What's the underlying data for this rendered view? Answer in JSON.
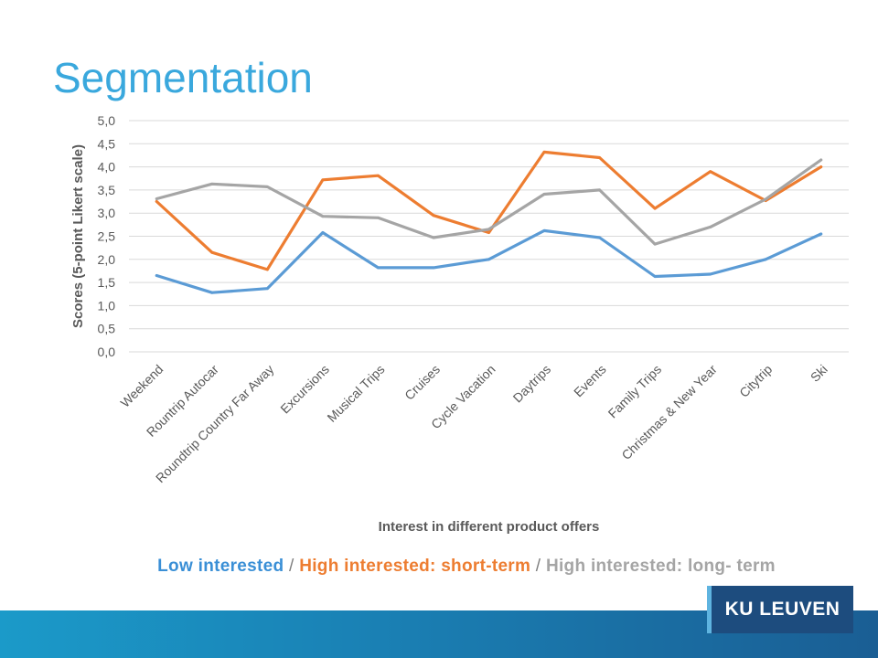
{
  "slide": {
    "title": "Segmentation",
    "logo_text": "KU LEUVEN"
  },
  "legend": {
    "low": "Low interested",
    "sep1": " / ",
    "short": "High interested: short-term",
    "sep2": " / ",
    "long": "High interested: long- term"
  },
  "colors": {
    "title": "#3aa8dd",
    "low": "#5b9bd5",
    "short": "#ed7d31",
    "long": "#a5a5a5",
    "footer": "#1a7fb3",
    "logo_bg": "#1d4c7e"
  },
  "chart_data": {
    "type": "line",
    "title": "",
    "xlabel": "Interest in different product offers",
    "ylabel": "Scores (5-point Likert scale)",
    "ylim": [
      0,
      5
    ],
    "yticks": [
      "0,0",
      "0,5",
      "1,0",
      "1,5",
      "2,0",
      "2,5",
      "3,0",
      "3,5",
      "4,0",
      "4,5",
      "5,0"
    ],
    "grid": true,
    "categories": [
      "Weekend",
      "Rountrip Autocar",
      "Roundtrip Country Far Away",
      "Excursions",
      "Musical Trips",
      "Cruises",
      "Cycle Vacation",
      "Daytrips",
      "Events",
      "Family Trips",
      "Christmas & New Year",
      "Citytrip",
      "Ski"
    ],
    "series": [
      {
        "name": "Low interested",
        "color": "#5b9bd5",
        "values": [
          1.65,
          1.28,
          1.37,
          2.58,
          1.82,
          1.82,
          2.0,
          2.62,
          2.47,
          1.63,
          1.68,
          2.0,
          2.55
        ]
      },
      {
        "name": "High interested: short-term",
        "color": "#ed7d31",
        "values": [
          3.25,
          2.15,
          1.78,
          3.72,
          3.81,
          2.95,
          2.58,
          4.32,
          4.2,
          3.1,
          3.9,
          3.27,
          4.0
        ]
      },
      {
        "name": "High interested: long- term",
        "color": "#a5a5a5",
        "values": [
          3.31,
          3.63,
          3.57,
          2.93,
          2.9,
          2.47,
          2.65,
          3.41,
          3.5,
          2.33,
          2.7,
          3.3,
          4.15
        ]
      }
    ]
  }
}
